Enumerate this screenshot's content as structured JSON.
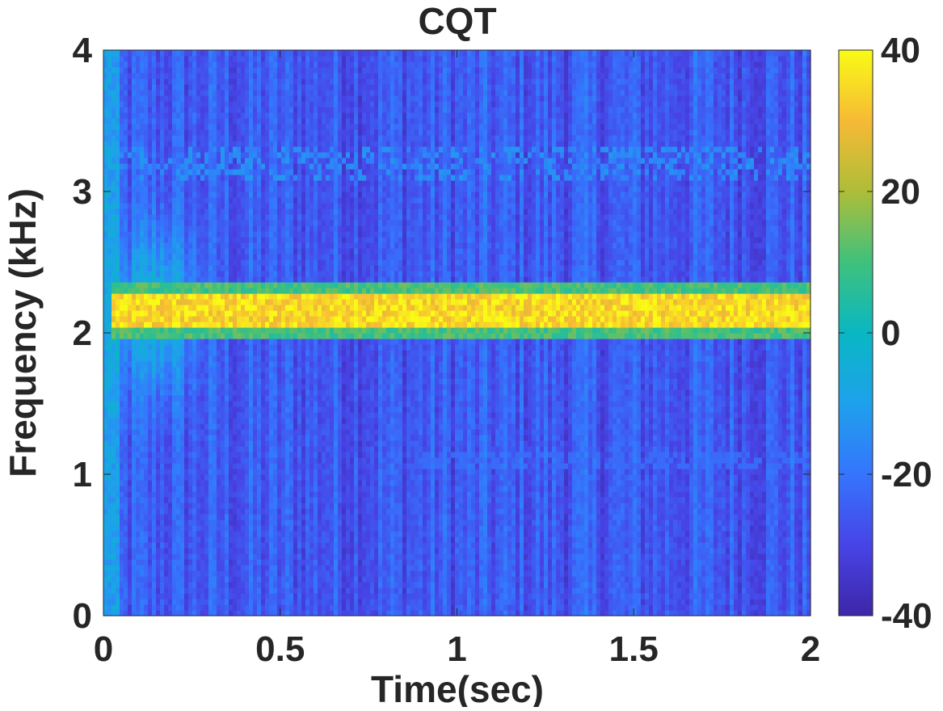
{
  "chart_data": {
    "type": "heatmap",
    "title": "CQT",
    "xlabel": "Time(sec)",
    "ylabel": "Frequency (kHz)",
    "xlim": [
      0,
      2
    ],
    "ylim": [
      0,
      4
    ],
    "xticks": [
      0,
      0.5,
      1,
      1.5,
      2
    ],
    "xtick_labels": [
      "0",
      "0.5",
      "1",
      "1.5",
      "2"
    ],
    "yticks": [
      0,
      1,
      2,
      3,
      4
    ],
    "ytick_labels": [
      "0",
      "1",
      "2",
      "3",
      "4"
    ],
    "colorbar": {
      "range": [
        -40,
        40
      ],
      "ticks": [
        -40,
        -20,
        0,
        20,
        40
      ],
      "tick_labels": [
        "-40",
        "-20",
        "0",
        "20",
        "40"
      ],
      "colormap": "parula"
    },
    "features": {
      "background_level_db": -25,
      "dominant_band": {
        "freq_khz_range": [
          2.1,
          2.25
        ],
        "level_db": 38,
        "time_range_sec": [
          0.02,
          2
        ]
      },
      "onset_burst": {
        "time_sec": 0.03,
        "level_db": 10
      },
      "weak_band_upper": {
        "freq_khz_range": [
          3.1,
          3.3
        ],
        "level_db": -18
      },
      "weak_band_lower": {
        "freq_khz": 1.1,
        "level_db": -22
      }
    },
    "grid": false
  },
  "colors": {
    "axis": "#262626",
    "background": "#ffffff"
  }
}
